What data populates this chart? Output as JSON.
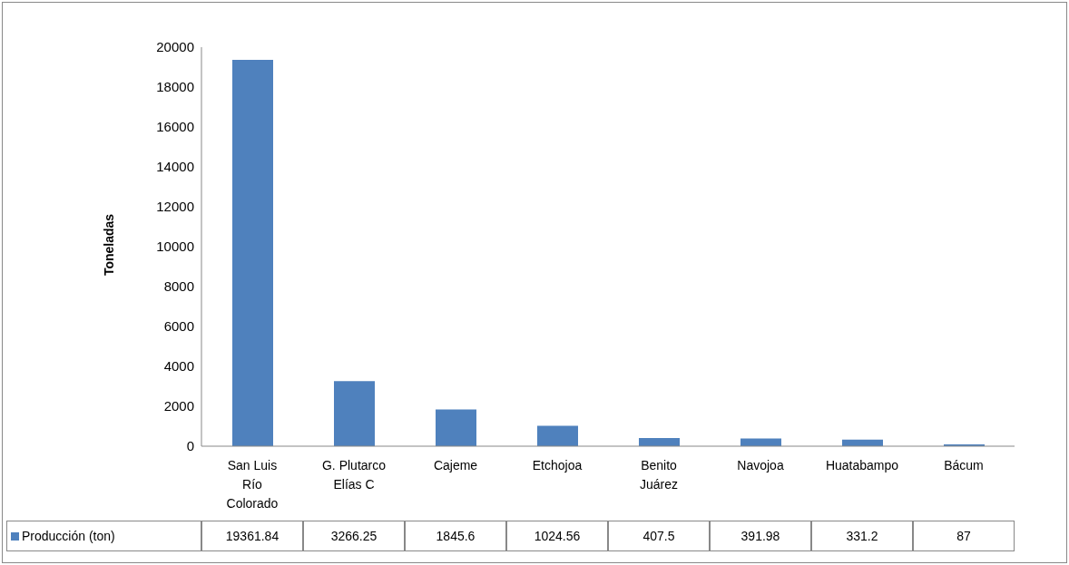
{
  "chart_data": {
    "type": "bar",
    "ylabel": "Toneladas",
    "categories": [
      "San Luis Río Colorado",
      "G. Plutarco Elías C",
      "Cajeme",
      "Etchojoa",
      "Benito Juárez",
      "Navojoa",
      "Huatabampo",
      "Bácum"
    ],
    "series": [
      {
        "name": "Producción (ton)",
        "color": "#4f81bd",
        "values": [
          19361.84,
          3266.25,
          1845.6,
          1024.56,
          407.5,
          391.98,
          331.2,
          87
        ]
      }
    ],
    "ylim": [
      0,
      20000
    ],
    "yticks": [
      0,
      2000,
      4000,
      6000,
      8000,
      10000,
      12000,
      14000,
      16000,
      18000,
      20000
    ],
    "grid": false,
    "legend": "bottom left",
    "data_labels": true
  }
}
